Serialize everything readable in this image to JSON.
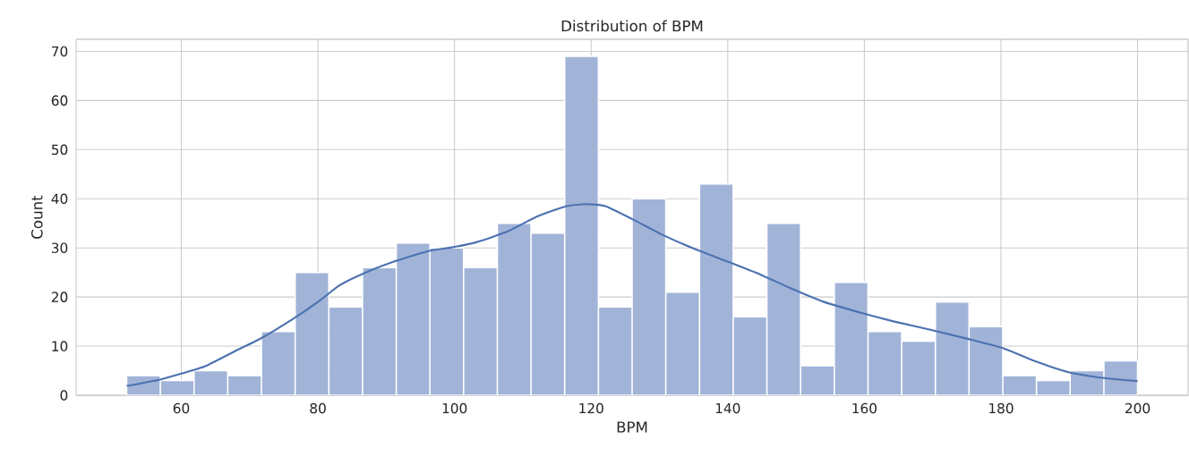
{
  "chart_data": {
    "type": "histogram",
    "title": "Distribution of BPM",
    "xlabel": "BPM",
    "ylabel": "Count",
    "bins": [
      52,
      56.93,
      61.87,
      66.8,
      71.73,
      76.67,
      81.6,
      86.53,
      91.47,
      96.4,
      101.33,
      106.27,
      111.2,
      116.13,
      121.07,
      126,
      130.93,
      135.87,
      140.8,
      145.73,
      150.67,
      155.6,
      160.53,
      165.47,
      170.4,
      175.33,
      180.27,
      185.2,
      190.13,
      195.07,
      200
    ],
    "series": [
      {
        "type": "histogram",
        "color": "#a1b4d8",
        "values": [
          4,
          3,
          5,
          4,
          13,
          25,
          18,
          26,
          31,
          30,
          26,
          35,
          33,
          69,
          18,
          40,
          21,
          43,
          16,
          35,
          6,
          23,
          13,
          11,
          19,
          14,
          4,
          3,
          5,
          7
        ]
      },
      {
        "type": "line",
        "color": "#4c72b0",
        "x": [
          52,
          56.9,
          60,
          63.5,
          67.9,
          71.8,
          76.2,
          80,
          83.2,
          86.7,
          91.1,
          96.3,
          100,
          103.3,
          107.7,
          112.1,
          116.4,
          119.3,
          122.1,
          126.1,
          130.4,
          135.3,
          140,
          144.9,
          149.2,
          154.1,
          160,
          164.4,
          170.1,
          175.4,
          180.3,
          184.7,
          189.9,
          195.2,
          200
        ],
        "values": [
          1.9,
          3.2,
          4.4,
          5.9,
          9.0,
          11.7,
          15.4,
          19.0,
          22.4,
          24.8,
          27.2,
          29.4,
          30.2,
          31.2,
          33.3,
          36.4,
          38.5,
          38.9,
          38.5,
          35.8,
          32.7,
          29.7,
          27.2,
          24.5,
          21.8,
          19.0,
          16.6,
          15.0,
          13.2,
          11.4,
          9.6,
          7.1,
          4.7,
          3.5,
          2.9
        ]
      }
    ],
    "xlim": [
      44.6,
      207.4
    ],
    "ylim": [
      0,
      72.45
    ],
    "xticks": [
      60,
      80,
      100,
      120,
      140,
      160,
      180,
      200
    ],
    "yticks": [
      0,
      10,
      20,
      30,
      40,
      50,
      60,
      70
    ],
    "grid": true
  }
}
